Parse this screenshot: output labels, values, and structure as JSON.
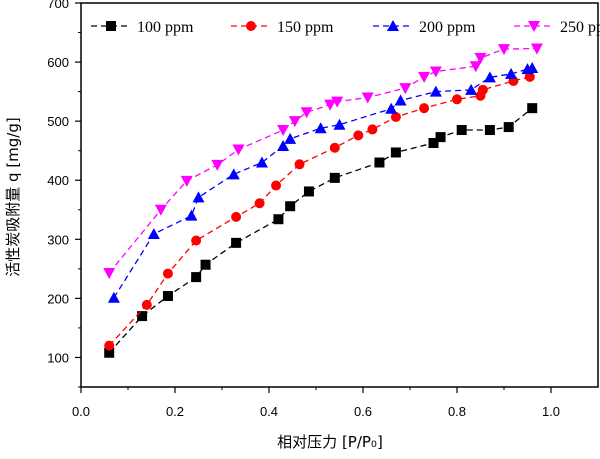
{
  "chart_data": {
    "type": "line",
    "title": "",
    "xlabel": "相对压力 [P/P₀]",
    "ylabel": "活性炭吸附量 q [mg/g]",
    "xlim": [
      0,
      1.1
    ],
    "ylim": [
      50,
      700
    ],
    "xticks": [
      "0.0",
      "0.2",
      "0.4",
      "0.6",
      "0.8",
      "1.0"
    ],
    "xtick_values": [
      0,
      0.2,
      0.4,
      0.6,
      0.8,
      1.0
    ],
    "yticks": [
      "100",
      "200",
      "300",
      "400",
      "500",
      "600",
      "700"
    ],
    "ytick_values": [
      100,
      200,
      300,
      400,
      500,
      600,
      700
    ],
    "grid": false,
    "legend_position": "top",
    "series": [
      {
        "name": "100 ppm",
        "color": "#000000",
        "marker": "square",
        "x": [
          0.06,
          0.13,
          0.185,
          0.245,
          0.265,
          0.33,
          0.42,
          0.445,
          0.485,
          0.54,
          0.635,
          0.67,
          0.75,
          0.765,
          0.81,
          0.87,
          0.91,
          0.96
        ],
        "y": [
          108,
          170,
          204,
          236,
          257,
          294,
          334,
          356,
          381,
          404,
          430,
          447,
          463,
          473,
          485,
          485,
          490,
          522
        ]
      },
      {
        "name": "150 ppm",
        "color": "#ff0000",
        "marker": "circle",
        "x": [
          0.06,
          0.14,
          0.185,
          0.245,
          0.33,
          0.38,
          0.415,
          0.465,
          0.54,
          0.59,
          0.62,
          0.67,
          0.73,
          0.8,
          0.85,
          0.855,
          0.92,
          0.955
        ],
        "y": [
          120,
          189,
          242,
          298,
          338,
          361,
          391,
          427,
          455,
          476,
          486,
          507,
          522,
          537,
          543,
          553,
          568,
          575
        ]
      },
      {
        "name": "200 ppm",
        "color": "#0000ff",
        "marker": "triangle-up",
        "x": [
          0.07,
          0.155,
          0.235,
          0.25,
          0.325,
          0.385,
          0.43,
          0.445,
          0.51,
          0.55,
          0.66,
          0.68,
          0.755,
          0.83,
          0.87,
          0.915,
          0.95,
          0.96
        ],
        "y": [
          201,
          309,
          340,
          371,
          410,
          430,
          458,
          470,
          488,
          494,
          521,
          535,
          550,
          553,
          574,
          580,
          588,
          590
        ]
      },
      {
        "name": "250 ppm",
        "color": "#ff00ff",
        "marker": "triangle-down",
        "x": [
          0.06,
          0.17,
          0.225,
          0.29,
          0.335,
          0.43,
          0.455,
          0.48,
          0.53,
          0.545,
          0.61,
          0.69,
          0.73,
          0.755,
          0.84,
          0.85,
          0.9,
          0.97
        ],
        "y": [
          243,
          350,
          399,
          426,
          452,
          485,
          500,
          515,
          528,
          533,
          540,
          556,
          575,
          584,
          593,
          607,
          622,
          623
        ]
      }
    ]
  }
}
